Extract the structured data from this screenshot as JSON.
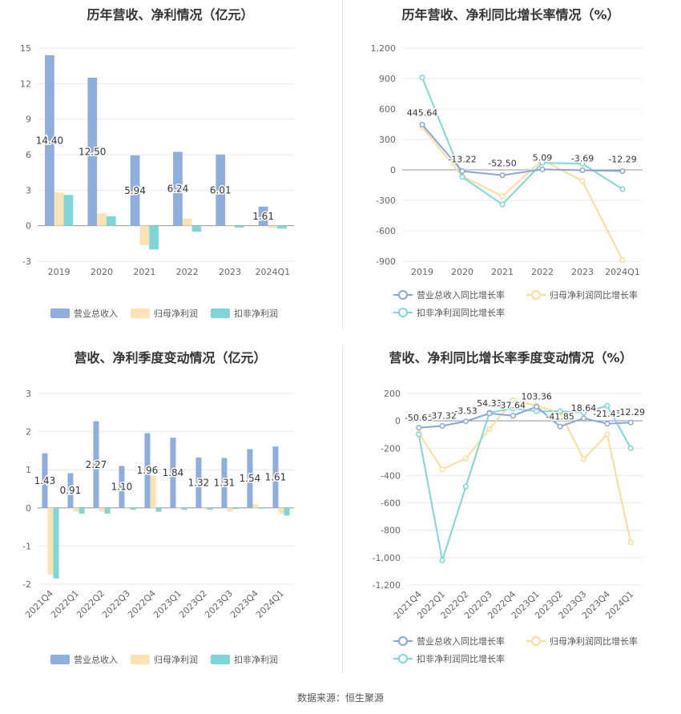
{
  "source": "数据来源：恒生聚源",
  "colors": {
    "revenue": "#8eaedc",
    "netprofit": "#fde3b3",
    "deducted": "#7fd6d8",
    "revenue_line": "#8aa6d6",
    "netprofit_line": "#fbdc9a",
    "deducted_line": "#7fd6d8"
  },
  "chart_data": [
    {
      "title": "历年营收、净利情况（亿元）",
      "type": "bar",
      "categories": [
        "2019",
        "2020",
        "2021",
        "2022",
        "2023",
        "2024Q1"
      ],
      "yticks": [
        "-3",
        "0",
        "3",
        "6",
        "9",
        "12",
        "15"
      ],
      "ylim": [
        -3,
        15
      ],
      "series": [
        {
          "name": "营业总收入",
          "values": [
            14.4,
            12.5,
            5.94,
            6.24,
            6.01,
            1.61
          ],
          "labels": [
            "14.40",
            "12.50",
            "5.94",
            "6.24",
            "6.01",
            "1.61"
          ]
        },
        {
          "name": "归母净利润",
          "values": [
            2.8,
            1.05,
            -1.65,
            0.6,
            -0.05,
            -0.2
          ]
        },
        {
          "name": "扣非净利润",
          "values": [
            2.6,
            0.8,
            -2.0,
            -0.5,
            -0.15,
            -0.25
          ]
        }
      ]
    },
    {
      "title": "历年营收、净利同比增长率情况（%）",
      "type": "line",
      "categories": [
        "2019",
        "2020",
        "2021",
        "2022",
        "2023",
        "2024Q1"
      ],
      "yticks": [
        "-900",
        "-600",
        "-300",
        "0",
        "300",
        "600",
        "900",
        "1,200"
      ],
      "ylim": [
        -900,
        1200
      ],
      "series": [
        {
          "name": "营业总收入同比增长率",
          "values": [
            445.64,
            -13.22,
            -52.5,
            5.09,
            -3.69,
            -12.29
          ],
          "labels": [
            "445.64",
            "-13.22",
            "-52.50",
            "5.09",
            "-3.69",
            "-12.29"
          ]
        },
        {
          "name": "归母净利润同比增长率",
          "values": [
            420,
            -62,
            -260,
            98,
            -110,
            -890
          ]
        },
        {
          "name": "扣非净利润同比增长率",
          "values": [
            910,
            -70,
            -340,
            70,
            60,
            -190
          ]
        }
      ]
    },
    {
      "title": "营收、净利季度变动情况（亿元）",
      "type": "bar",
      "categories": [
        "2021Q4",
        "2022Q1",
        "2022Q2",
        "2022Q3",
        "2022Q4",
        "2023Q1",
        "2023Q2",
        "2023Q3",
        "2023Q4",
        "2024Q1"
      ],
      "yticks": [
        "-2",
        "-1",
        "0",
        "1",
        "2",
        "3"
      ],
      "ylim": [
        -2,
        3
      ],
      "series": [
        {
          "name": "营业总收入",
          "values": [
            1.43,
            0.91,
            2.27,
            1.1,
            1.96,
            1.84,
            1.32,
            1.31,
            1.54,
            1.61
          ],
          "labels": [
            "1.43",
            "0.91",
            "2.27",
            "1.10",
            "1.96",
            "1.84",
            "1.32",
            "1.31",
            "1.54",
            "1.61"
          ]
        },
        {
          "name": "归母净利润",
          "values": [
            -1.75,
            -0.1,
            -0.1,
            -0.03,
            0.85,
            -0.03,
            -0.03,
            -0.1,
            0.1,
            -0.15
          ]
        },
        {
          "name": "扣非净利润",
          "values": [
            -1.85,
            -0.15,
            -0.15,
            -0.05,
            -0.1,
            -0.05,
            -0.05,
            -0.03,
            -0.02,
            -0.2
          ]
        }
      ]
    },
    {
      "title": "营收、净利同比增长率季度变动情况（%）",
      "type": "line",
      "categories": [
        "2021Q4",
        "2022Q1",
        "2022Q2",
        "2022Q3",
        "2022Q4",
        "2023Q1",
        "2023Q2",
        "2023Q3",
        "2023Q4",
        "2024Q1"
      ],
      "yticks": [
        "-1,200",
        "-1,000",
        "-800",
        "-600",
        "-400",
        "-200",
        "0",
        "200"
      ],
      "ylim": [
        -1200,
        200
      ],
      "series": [
        {
          "name": "营业总收入同比增长率",
          "values": [
            -50.63,
            -37.32,
            -3.53,
            54.33,
            37.64,
            103.36,
            -41.85,
            18.64,
            -21.43,
            -12.29
          ],
          "labels": [
            "-50.63",
            "-37.32",
            "-3.53",
            "54.33",
            "37.64",
            "103.36",
            "-41.85",
            "18.64",
            "-21.43",
            "-12.29"
          ]
        },
        {
          "name": "归母净利润同比增长率",
          "values": [
            -90,
            -355,
            -275,
            -60,
            150,
            110,
            60,
            -280,
            -100,
            -890
          ]
        },
        {
          "name": "扣非净利润同比增长率",
          "values": [
            -100,
            -1020,
            -480,
            60,
            90,
            70,
            70,
            60,
            110,
            -200
          ]
        }
      ]
    }
  ]
}
